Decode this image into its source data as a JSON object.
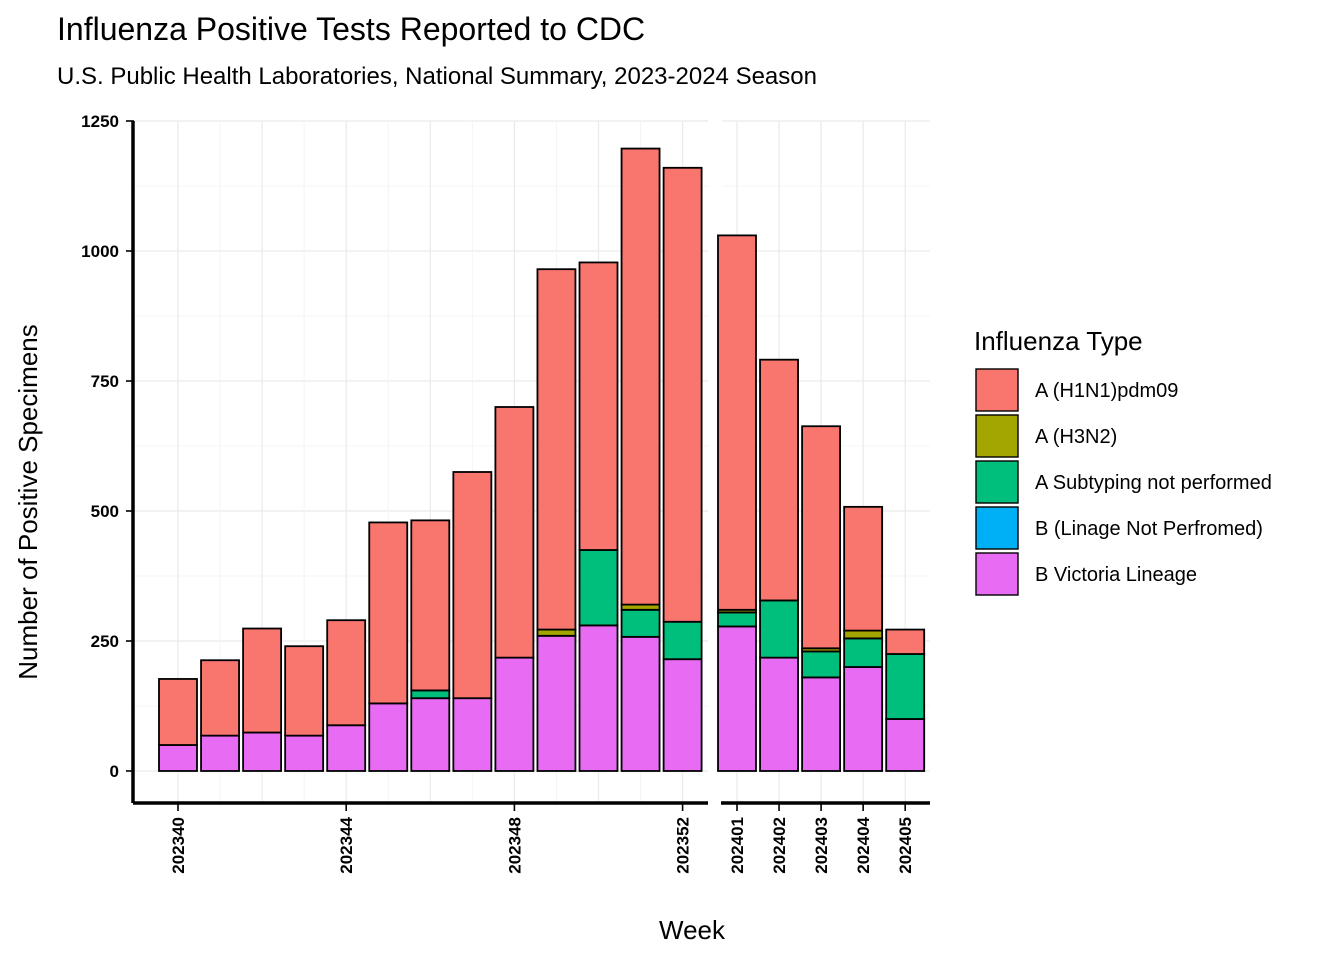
{
  "chart_data": {
    "type": "bar",
    "stacked": true,
    "title": "Influenza Positive Tests Reported to CDC",
    "subtitle": "U.S. Public Health Laboratories, National Summary, 2023-2024 Season",
    "xlabel": "Week",
    "ylabel": "Number of Positive Specimens",
    "ylim": [
      0,
      1250
    ],
    "yticks": [
      "0",
      "250",
      "500",
      "750",
      "1000",
      "1250"
    ],
    "legend": {
      "title": "Influenza Type",
      "position": "right"
    },
    "panels": [
      {
        "categories": [
          "202340",
          "202341",
          "202342",
          "202343",
          "202344",
          "202345",
          "202346",
          "202347",
          "202348",
          "202349",
          "202350",
          "202351",
          "202352"
        ],
        "tick_labels": [
          "202340",
          "202344",
          "202348",
          "202352"
        ]
      },
      {
        "categories": [
          "202401",
          "202402",
          "202403",
          "202404",
          "202405"
        ],
        "tick_labels": [
          "202401",
          "202402",
          "202403",
          "202404",
          "202405"
        ]
      }
    ],
    "series": [
      {
        "name": "B Victoria Lineage",
        "color": "#E76BF3",
        "values": [
          50,
          68,
          74,
          68,
          88,
          130,
          140,
          140,
          218,
          260,
          280,
          258,
          215,
          278,
          218,
          180,
          200,
          100
        ]
      },
      {
        "name": "B (Linage Not Perfromed)",
        "color": "#00B0F6",
        "values": [
          0,
          0,
          0,
          0,
          0,
          0,
          0,
          0,
          0,
          0,
          0,
          0,
          0,
          0,
          0,
          0,
          0,
          0
        ]
      },
      {
        "name": "A Subtyping not performed",
        "color": "#00BF7D",
        "values": [
          0,
          0,
          0,
          0,
          0,
          0,
          15,
          0,
          0,
          0,
          145,
          52,
          72,
          27,
          110,
          50,
          55,
          125
        ]
      },
      {
        "name": "A (H3N2)",
        "color": "#A3A500",
        "values": [
          0,
          0,
          0,
          0,
          0,
          0,
          0,
          0,
          0,
          12,
          0,
          10,
          0,
          5,
          0,
          6,
          15,
          0
        ]
      },
      {
        "name": "A (H1N1)pdm09",
        "color": "#F8766D",
        "values": [
          127,
          145,
          200,
          172,
          202,
          348,
          327,
          435,
          482,
          693,
          553,
          877,
          873,
          720,
          463,
          427,
          238,
          47
        ]
      }
    ],
    "legend_order": [
      "A (H1N1)pdm09",
      "A (H3N2)",
      "A Subtyping not performed",
      "B (Linage Not Perfromed)",
      "B Victoria Lineage"
    ]
  }
}
